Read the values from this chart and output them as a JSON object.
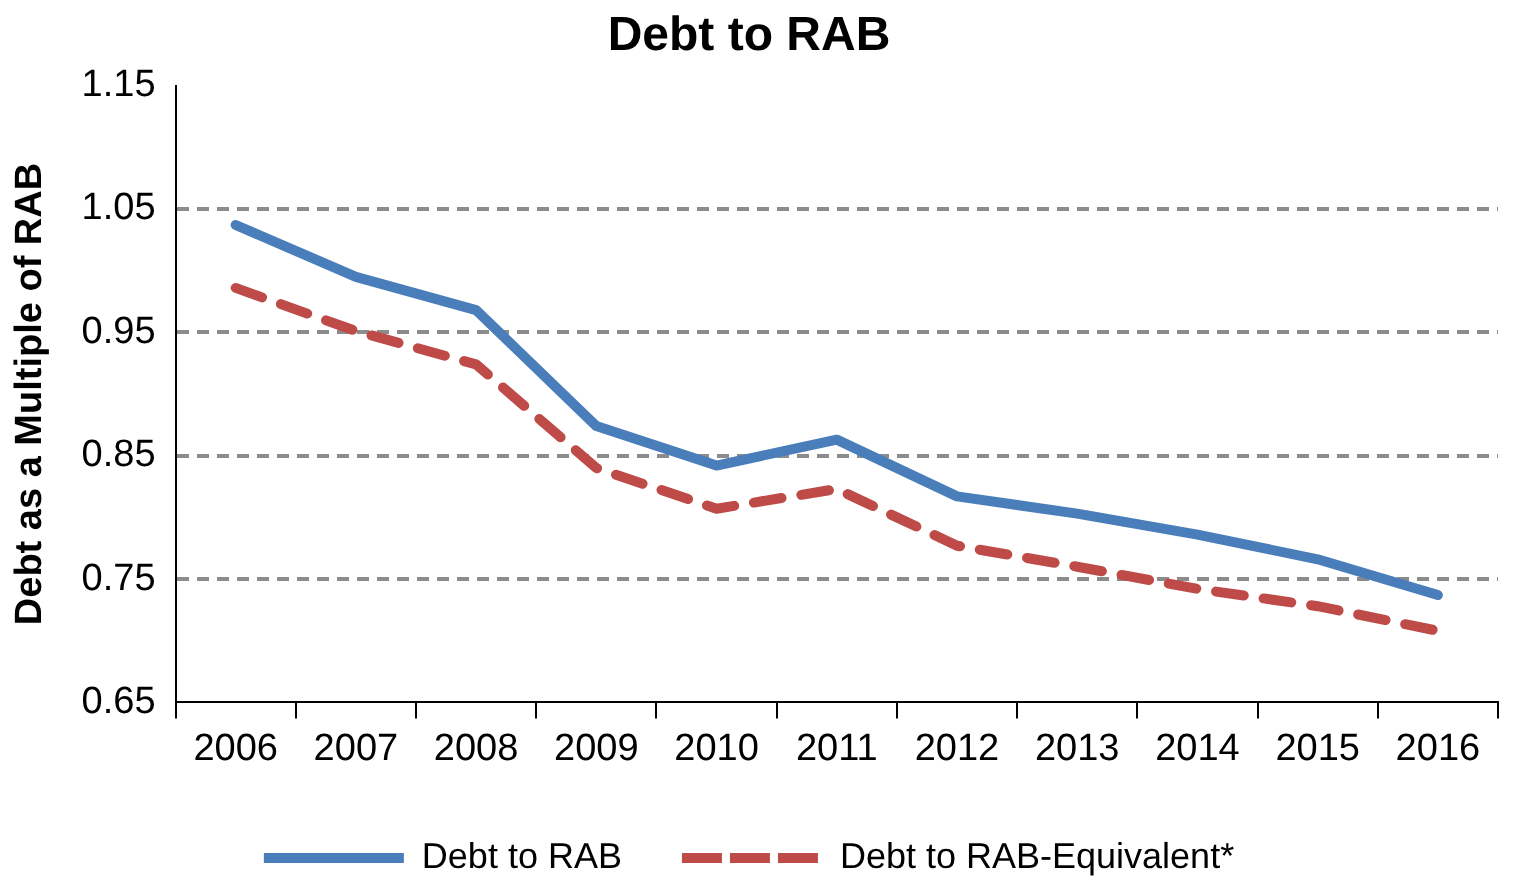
{
  "chart_data": {
    "type": "line",
    "title": "Debt to RAB",
    "ylabel": "Debt as a Multiple of RAB",
    "categories": [
      "2006",
      "2007",
      "2008",
      "2009",
      "2010",
      "2011",
      "2012",
      "2013",
      "2014",
      "2015",
      "2016"
    ],
    "series": [
      {
        "name": "Debt to RAB",
        "color": "#4a7ebb",
        "line_style": "solid",
        "values": [
          1.037,
          0.995,
          0.968,
          0.874,
          0.842,
          0.863,
          0.817,
          0.803,
          0.786,
          0.766,
          0.737
        ]
      },
      {
        "name": "Debt to RAB-Equivalent*",
        "color": "#be4b48",
        "line_style": "dashed",
        "values": [
          0.986,
          0.951,
          0.924,
          0.84,
          0.807,
          0.823,
          0.777,
          0.76,
          0.742,
          0.728,
          0.708
        ]
      }
    ],
    "ylim": [
      0.65,
      1.15
    ],
    "yticks": [
      0.65,
      0.75,
      0.85,
      0.95,
      1.05,
      1.15
    ],
    "grid": "y",
    "legend": "bottom",
    "marker": "none"
  }
}
